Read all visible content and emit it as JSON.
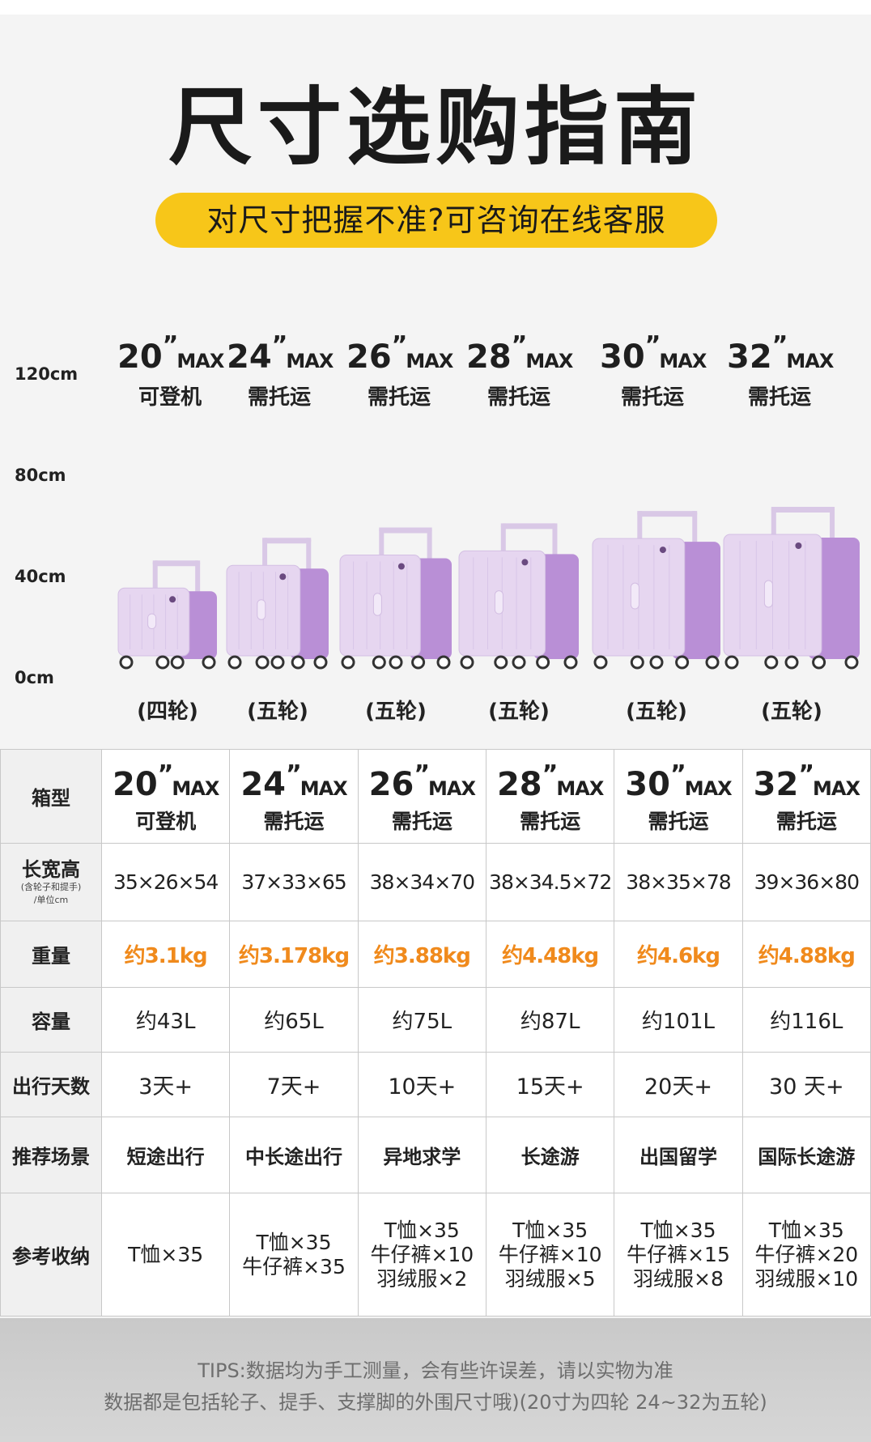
{
  "title": "尺寸选购指南",
  "subtitle": "对尺寸把握不准?可咨询在线客服",
  "y_axis_labels": [
    "120cm",
    "80cm",
    "40cm",
    "0cm"
  ],
  "quote_mark": "”",
  "max_label": "MAX",
  "sizes": [
    {
      "size": "20",
      "type": "可登机",
      "wheels": "(四轮)"
    },
    {
      "size": "24",
      "type": "需托运",
      "wheels": "(五轮)"
    },
    {
      "size": "26",
      "type": "需托运",
      "wheels": "(五轮)"
    },
    {
      "size": "28",
      "type": "需托运",
      "wheels": "(五轮)"
    },
    {
      "size": "30",
      "type": "需托运",
      "wheels": "(五轮)"
    },
    {
      "size": "32",
      "type": "需托运",
      "wheels": "(五轮)"
    }
  ],
  "suitcase_heights_cm": [
    54,
    65,
    70,
    72,
    78,
    80
  ],
  "colors": {
    "accent_yellow": "#f7c619",
    "weight_orange": "#f08a1c",
    "suitcase_body": "#e6d6f0",
    "suitcase_side": "#b98fd6",
    "suitcase_handle": "#d9c8e6"
  },
  "table": {
    "row_headers": {
      "model": "箱型",
      "dims": "长宽高",
      "dims_note1": "(含轮子和提手)",
      "dims_note2": "/单位cm",
      "weight": "重量",
      "capacity": "容量",
      "days": "出行天数",
      "scene": "推荐场景",
      "storage": "参考收纳"
    },
    "dims": [
      "35×26×54",
      "37×33×65",
      "38×34×70",
      "38×34.5×72",
      "38×35×78",
      "39×36×80"
    ],
    "weight": [
      "约3.1kg",
      "约3.178kg",
      "约3.88kg",
      "约4.48kg",
      "约4.6kg",
      "约4.88kg"
    ],
    "capacity": [
      "约43L",
      "约65L",
      "约75L",
      "约87L",
      "约101L",
      "约116L"
    ],
    "days": [
      "3天+",
      "7天+",
      "10天+",
      "15天+",
      "20天+",
      "30 天+"
    ],
    "scene": [
      "短途出行",
      "中长途出行",
      "异地求学",
      "长途游",
      "出国留学",
      "国际长途游"
    ],
    "storage": [
      [
        "T恤×35"
      ],
      [
        "T恤×35",
        "牛仔裤×35"
      ],
      [
        "T恤×35",
        "牛仔裤×10",
        "羽绒服×2"
      ],
      [
        "T恤×35",
        "牛仔裤×10",
        "羽绒服×5"
      ],
      [
        "T恤×35",
        "牛仔裤×15",
        "羽绒服×8"
      ],
      [
        "T恤×35",
        "牛仔裤×20",
        "羽绒服×10"
      ]
    ]
  },
  "tips": {
    "line1": "TIPS:数据均为手工测量，会有些许误差，请以实物为准",
    "line2": "数据都是包括轮子、提手、支撑脚的外围尺寸哦)(20寸为四轮 24~32为五轮)"
  }
}
